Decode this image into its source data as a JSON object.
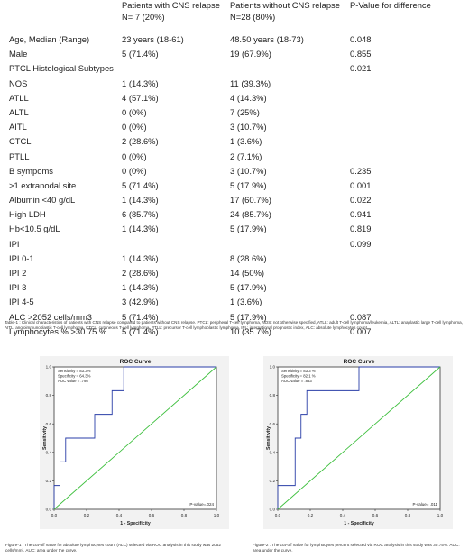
{
  "table": {
    "headers": [
      "",
      "Patients with CNS relapse N= 7 (20%)",
      "Patients without CNS relapse N=28 (80%)",
      "P-Value for difference"
    ],
    "rows": [
      [
        "Age, Median (Range)",
        "23 years (18-61)",
        "48.50 years (18-73)",
        "0.048"
      ],
      [
        "Male",
        "5 (71.4%)",
        "19 (67.9%)",
        "0.855"
      ],
      [
        "PTCL Histological Subtypes",
        "",
        "",
        "0.021"
      ],
      [
        "NOS",
        "1 (14.3%)",
        "11 (39.3%)",
        ""
      ],
      [
        "ATLL",
        "4 (57.1%)",
        "4 (14.3%)",
        ""
      ],
      [
        "ALTL",
        "0 (0%)",
        "7 (25%)",
        ""
      ],
      [
        "AITL",
        "0 (0%)",
        "3 (10.7%)",
        ""
      ],
      [
        "CTCL",
        "2 (28.6%)",
        "1 (3.6%)",
        ""
      ],
      [
        "PTLL",
        "0 (0%)",
        "2 (7.1%)",
        ""
      ],
      [
        "B sympoms",
        "0 (0%)",
        "3 (10.7%)",
        "0.235"
      ],
      [
        ">1 extranodal site",
        "5 (71.4%)",
        "5 (17.9%)",
        "0.001"
      ],
      [
        "Albumin <40 g/dL",
        "1 (14.3%)",
        "17 (60.7%)",
        "0.022"
      ],
      [
        "High LDH",
        "6 (85.7%)",
        "24 (85.7%)",
        "0.941"
      ],
      [
        "Hb<10.5 g/dL",
        "1 (14.3%)",
        "5 (17.9%)",
        "0.819"
      ],
      [
        "IPI",
        "",
        "",
        "0.099"
      ],
      [
        "IPI 0-1",
        "1 (14.3%)",
        "8 (28.6%)",
        ""
      ],
      [
        "IPI 2",
        "2 (28.6%)",
        "14 (50%)",
        ""
      ],
      [
        "IPI 3",
        "1 (14.3%)",
        "5 (17.9%)",
        ""
      ],
      [
        "IPI 4-5",
        "3 (42.9%)",
        "1 (3.6%)",
        ""
      ],
      [
        "ALC >2052 cells/mm3",
        "5 (71.4%)",
        "5 (17.9%)",
        "0.087"
      ],
      [
        "Lymphocytes % >30.75 %",
        "5 (71.4%)",
        "10 (35.7%)",
        "0.007"
      ]
    ],
    "caption": "Table-1 : Clinical characteristics of patients with CNS relapse compared to patients without CNS relapse. PTCL: peripheral T-cell lymphoma, NOS: not otherwise specified, ATLL: adult T-cell lymphoma/leukemia, ALTL: anaplastic large T-cell lymphoma, AITL: angioimmunoblastic T-cell lymphoma, CTCL: cutaneous T-cell lymphoma, PTLL: precursor T-cell lymphoblastic lymphoma, IPI : international prognostic index, ALC: absolute lymphocytes count."
  },
  "figures": [
    {
      "caption": "Figure-1 : The cut-off value for absolute lymphocytes count (ALC) selected via ROC analysis in this study was 2052 cells/mm³. AUC: area under the curve.",
      "pvalue_label": "P-value=.024"
    },
    {
      "caption": "Figure-2 : The cut-off value for lymphocytes percent selected via ROC analysis in this study was 30.75%. AUC: area under the curve.",
      "pvalue_label": "P-value= .011"
    }
  ],
  "chart_data": [
    {
      "type": "line",
      "title": "ROC Curve",
      "xlabel": "1 - Specificity",
      "ylabel": "Sensitivity",
      "xlim": [
        0,
        1
      ],
      "ylim": [
        0,
        1
      ],
      "xticks": [
        "0.0",
        "0.2",
        "0.4",
        "0.6",
        "0.8",
        "1.0"
      ],
      "yticks": [
        "0.0",
        "0.2",
        "0.4",
        "0.6",
        "0.8",
        "1.0"
      ],
      "annotations": [
        "Sensitivity = 83.3%",
        "Specificity = 64.3%",
        "AUC value = .798"
      ],
      "series": [
        {
          "color": "#2a3ea8",
          "x": [
            0,
            0,
            0.036,
            0.036,
            0.071,
            0.071,
            0.25,
            0.25,
            0.357,
            0.357,
            0.429,
            0.429,
            1
          ],
          "y": [
            0,
            0.167,
            0.167,
            0.333,
            0.333,
            0.5,
            0.5,
            0.667,
            0.667,
            0.833,
            0.833,
            1,
            1
          ]
        },
        {
          "color": "#3cbf3c",
          "x": [
            0,
            1
          ],
          "y": [
            0,
            1
          ]
        }
      ],
      "grid": false
    },
    {
      "type": "line",
      "title": "ROC Curve",
      "xlabel": "1 - Specificity",
      "ylabel": "Sensitivity",
      "xlim": [
        0,
        1
      ],
      "ylim": [
        0,
        1
      ],
      "xticks": [
        "0.0",
        "0.2",
        "0.4",
        "0.6",
        "0.8",
        "1.0"
      ],
      "yticks": [
        "0.0",
        "0.2",
        "0.4",
        "0.6",
        "0.8",
        "1.0"
      ],
      "annotations": [
        "Sensitivity = 83.3 %",
        "Specificity = 82.1 %",
        "AUC value = .833"
      ],
      "series": [
        {
          "color": "#2a3ea8",
          "x": [
            0,
            0,
            0.107,
            0.107,
            0.143,
            0.143,
            0.179,
            0.179,
            0.5,
            0.5,
            1
          ],
          "y": [
            0,
            0.167,
            0.167,
            0.5,
            0.5,
            0.667,
            0.667,
            0.833,
            0.833,
            1,
            1
          ]
        },
        {
          "color": "#3cbf3c",
          "x": [
            0,
            1
          ],
          "y": [
            0,
            1
          ]
        }
      ],
      "grid": false
    }
  ]
}
